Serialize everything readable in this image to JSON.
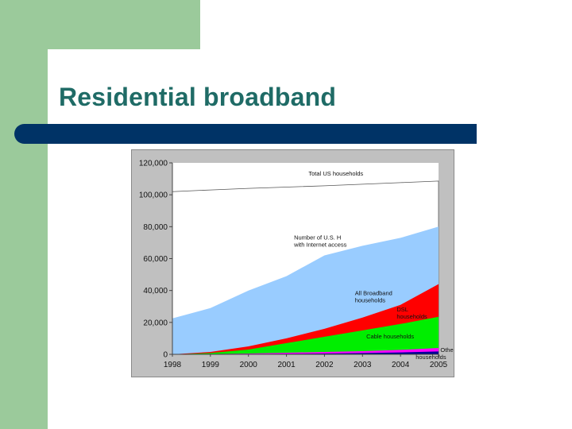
{
  "slide": {
    "title": "Residential broadband"
  },
  "colors": {
    "sidebar": "#9bca9b",
    "title": "#1f6b66",
    "rule": "#003366",
    "chart_background": "#c0c0c0"
  },
  "chart_data": {
    "type": "area",
    "x": [
      1998,
      1999,
      2000,
      2001,
      2002,
      2003,
      2004,
      2005
    ],
    "tick_labels_x": [
      "1998",
      "1999",
      "2000",
      "2001",
      "2002",
      "2003",
      "2004",
      "2005"
    ],
    "tick_labels_y": [
      "0",
      "20,000",
      "40,000",
      "60,000",
      "80,000",
      "100,000",
      "120,000"
    ],
    "ylim": [
      0,
      120000
    ],
    "grid": false,
    "legend": "none",
    "series": [
      {
        "name": "Total US households",
        "color": "#ffffff",
        "values": [
          102000,
          103000,
          104000,
          104800,
          105600,
          106600,
          107600,
          108600
        ]
      },
      {
        "name": "Number of U.S. households with Internet access",
        "color": "#99ccff",
        "values": [
          22500,
          29000,
          40000,
          49000,
          62000,
          68000,
          73000,
          80000
        ]
      },
      {
        "name": "All Broadband households",
        "color": "#ff0000",
        "values": [
          0,
          1500,
          5000,
          10000,
          16000,
          23000,
          31000,
          44000
        ]
      },
      {
        "name": "DSL households",
        "color": "#00ee00",
        "values": [
          0,
          800,
          3000,
          7000,
          11000,
          15000,
          19000,
          23500
        ]
      },
      {
        "name": "Cable households",
        "color": "#ff00ff",
        "values": [
          0,
          200,
          500,
          1000,
          1500,
          2000,
          2800,
          4000
        ]
      },
      {
        "name": "Other",
        "color": "#000099",
        "values": [
          0,
          100,
          200,
          300,
          500,
          800,
          1200,
          1800
        ]
      }
    ],
    "annotations": [
      {
        "lines": [
          "Total US households"
        ],
        "at": [
          2002.3,
          112000
        ],
        "anchor": "middle",
        "series": 0
      },
      {
        "lines": [
          "Number of U.S. H",
          "with Internet access"
        ],
        "at": [
          2001.2,
          72000
        ],
        "anchor": "start",
        "series": 1
      },
      {
        "lines": [
          "All Broadband",
          "households"
        ],
        "at": [
          2002.8,
          37000
        ],
        "anchor": "start",
        "series": 2
      },
      {
        "lines": [
          "DSL",
          "households"
        ],
        "at": [
          2003.9,
          27000
        ],
        "anchor": "start",
        "series": 3
      },
      {
        "lines": [
          "Cable households"
        ],
        "at": [
          2003.1,
          10000
        ],
        "anchor": "start",
        "series": 4
      },
      {
        "lines": [
          "Other"
        ],
        "at": [
          2005.05,
          1500
        ],
        "anchor": "start",
        "series": 5
      },
      {
        "lines": [
          "households"
        ],
        "at": [
          2004.8,
          -3000
        ],
        "anchor": "middle",
        "series": 5
      }
    ]
  }
}
